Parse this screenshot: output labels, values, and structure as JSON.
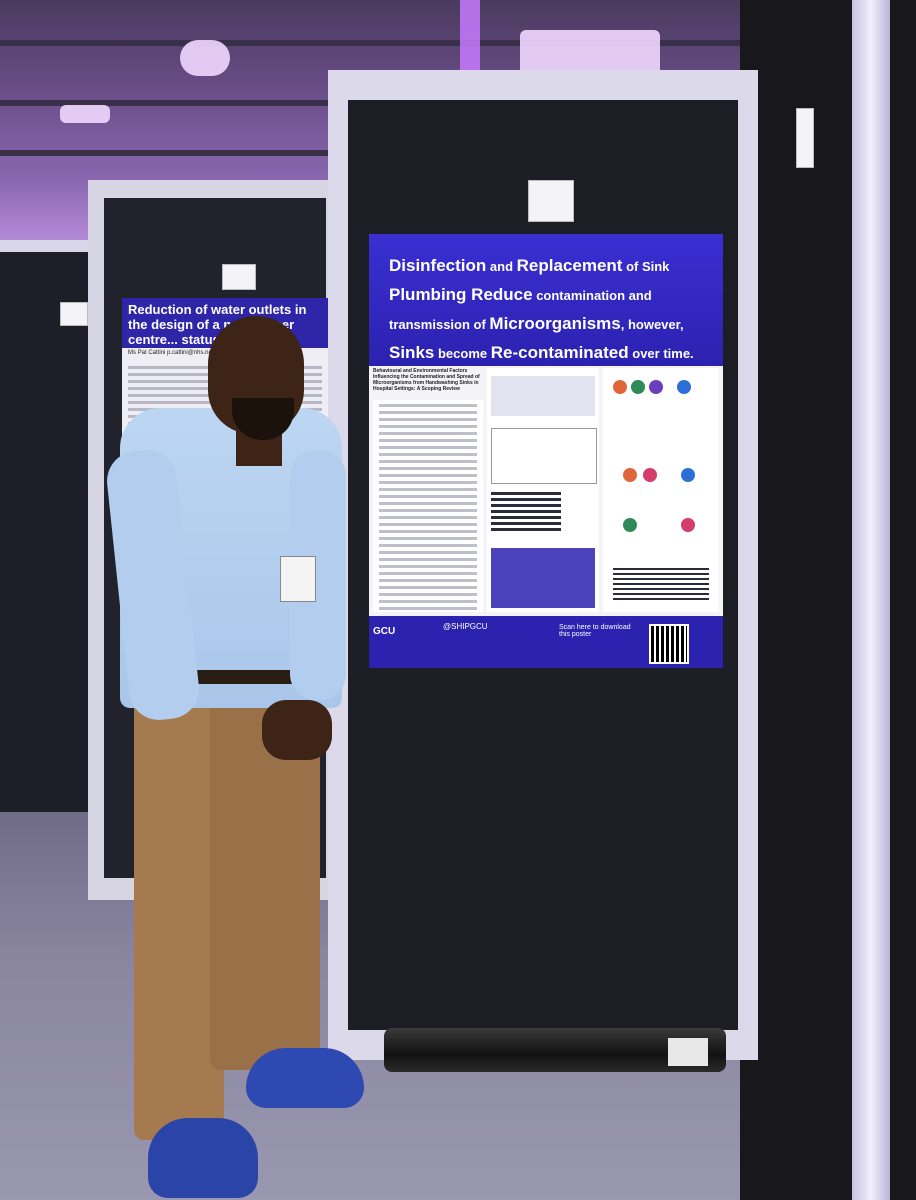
{
  "scene": {
    "description_tag": "photo",
    "left_poster": {
      "title": "Reduction of water outlets in the design of a new cancer centre... status quo",
      "author": "Ms Pat Cattini",
      "author_email": "p.cattini@nhs.net"
    },
    "main_poster": {
      "title_line1_bold": "Disinfection",
      "title_line1_rest": " and ",
      "title_line1_bold2": "Replacement",
      "title_line1_rest2": " of Sink",
      "title_line2_bold": "Plumbing Reduce",
      "title_line2_rest": " contamination and",
      "title_line3_rest": "transmission of ",
      "title_line3_bold": "Microorganisms",
      "title_line3_rest2": ", however,",
      "title_line4_bold": "Sinks",
      "title_line4_rest": " become ",
      "title_line4_bold2": "Re-contaminated",
      "title_line4_rest2": " over time.",
      "subtitle": "Behavioural and Environmental Factors Influencing the Contamination and Spread of Microorganisms from Handwashing Sinks in Hospital Settings: A Scoping Review",
      "footer_handle": "@SHIPGCU",
      "footer_scan": "Scan here to download this poster",
      "footer_logo": "GCU"
    },
    "colors": {
      "poster_blue": "#2b22b0",
      "ceiling_purple": "#8a67b0"
    }
  }
}
